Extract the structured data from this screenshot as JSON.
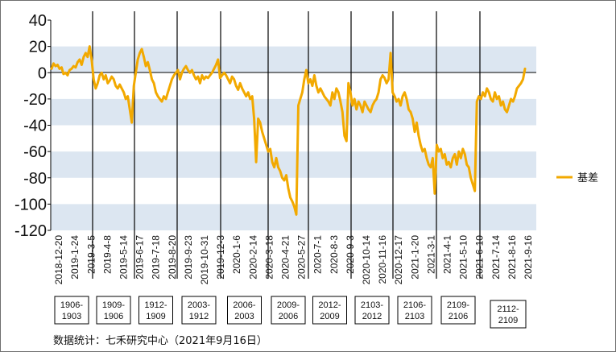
{
  "chart_data": {
    "type": "line",
    "title": "",
    "xlabel": "",
    "ylabel": "",
    "ylim": [
      -120,
      40
    ],
    "yticks": [
      40,
      20,
      0,
      -20,
      -40,
      -60,
      -80,
      -100,
      -120
    ],
    "band_color": "#dce6f1",
    "line_color": "#f2a900",
    "xtick_labels": [
      "2018-12-20",
      "2019-1-24",
      "2019-3-5",
      "2019-4-8",
      "2019-5-14",
      "2019-6-17",
      "2019-7-18",
      "2019-8-20",
      "2019-9-23",
      "2019-10-31",
      "2019-12-3",
      "2020-1-6",
      "2020-2-14",
      "2020-3-18",
      "2020-4-21",
      "2020-5-27",
      "2020-7-1",
      "2020-8-3",
      "2020-9-3",
      "2020-10-14",
      "2020-11-16",
      "2020-12-17",
      "2021-1-20",
      "2021-3-1",
      "2021-4-1",
      "2021-5-10",
      "2021-6-10",
      "2021-7-14",
      "2021-8-16",
      "2021-9-16"
    ],
    "contract_labels": [
      "1906-1903",
      "1909-1906",
      "1912-1909",
      "2003-1912",
      "2006-2003",
      "2009-2006",
      "2012-2009",
      "2103-2012",
      "2106-2103",
      "2109-2106",
      "2112-2109"
    ],
    "series": [
      {
        "name": "基差",
        "values": [
          3,
          7,
          5,
          6,
          3,
          4,
          -1,
          0,
          -2,
          2,
          3,
          5,
          4,
          8,
          10,
          6,
          12,
          15,
          12,
          20,
          10,
          -5,
          -12,
          -8,
          -2,
          0,
          -5,
          -2,
          -8,
          -6,
          -3,
          -5,
          -10,
          -12,
          -9,
          -12,
          -15,
          -20,
          -18,
          -28,
          -38,
          -10,
          0,
          10,
          15,
          18,
          12,
          5,
          8,
          2,
          -5,
          -8,
          -15,
          -18,
          -20,
          -22,
          -18,
          -20,
          -15,
          -10,
          -5,
          -2,
          0,
          2,
          -5,
          0,
          3,
          5,
          2,
          0,
          2,
          -2,
          -5,
          -3,
          -8,
          -2,
          -5,
          -3,
          -4,
          -2,
          0,
          3,
          6,
          10,
          -4,
          -2,
          0,
          -2,
          -5,
          -8,
          -3,
          -5,
          -10,
          -13,
          -8,
          -12,
          -15,
          -18,
          -15,
          -20,
          -18,
          -35,
          -68,
          -35,
          -38,
          -45,
          -50,
          -55,
          -60,
          -58,
          -68,
          -72,
          -65,
          -72,
          -75,
          -80,
          -82,
          -78,
          -88,
          -95,
          -98,
          -102,
          -108,
          -25,
          -20,
          -15,
          -5,
          2,
          -8,
          -5,
          -10,
          -2,
          -10,
          -15,
          -12,
          -15,
          -18,
          -20,
          -22,
          -25,
          -15,
          -20,
          -12,
          -15,
          -22,
          -30,
          -48,
          -52,
          -8,
          -15,
          -25,
          -20,
          -28,
          -22,
          -25,
          -30,
          -22,
          -25,
          -28,
          -30,
          -25,
          -22,
          -20,
          -15,
          -5,
          -2,
          -4,
          -8,
          -5,
          15,
          -15,
          -18,
          -22,
          -20,
          -25,
          -18,
          -15,
          -20,
          -28,
          -30,
          -35,
          -45,
          -38,
          -48,
          -55,
          -60,
          -58,
          -65,
          -70,
          -72,
          -65,
          -92,
          -55,
          -60,
          -58,
          -65,
          -62,
          -70,
          -68,
          -72,
          -65,
          -62,
          -70,
          -60,
          -65,
          -58,
          -62,
          -70,
          -72,
          -80,
          -85,
          -90,
          -22,
          -18,
          -20,
          -15,
          -18,
          -12,
          -15,
          -20,
          -22,
          -15,
          -20,
          -18,
          -25,
          -22,
          -28,
          -30,
          -25,
          -20,
          -22,
          -18,
          -12,
          -10,
          -8,
          -5,
          3
        ]
      }
    ],
    "legend": {
      "position": "right",
      "label": "基差"
    },
    "source_note": "数据统计：七禾研究中心（2021年9月16日）"
  }
}
